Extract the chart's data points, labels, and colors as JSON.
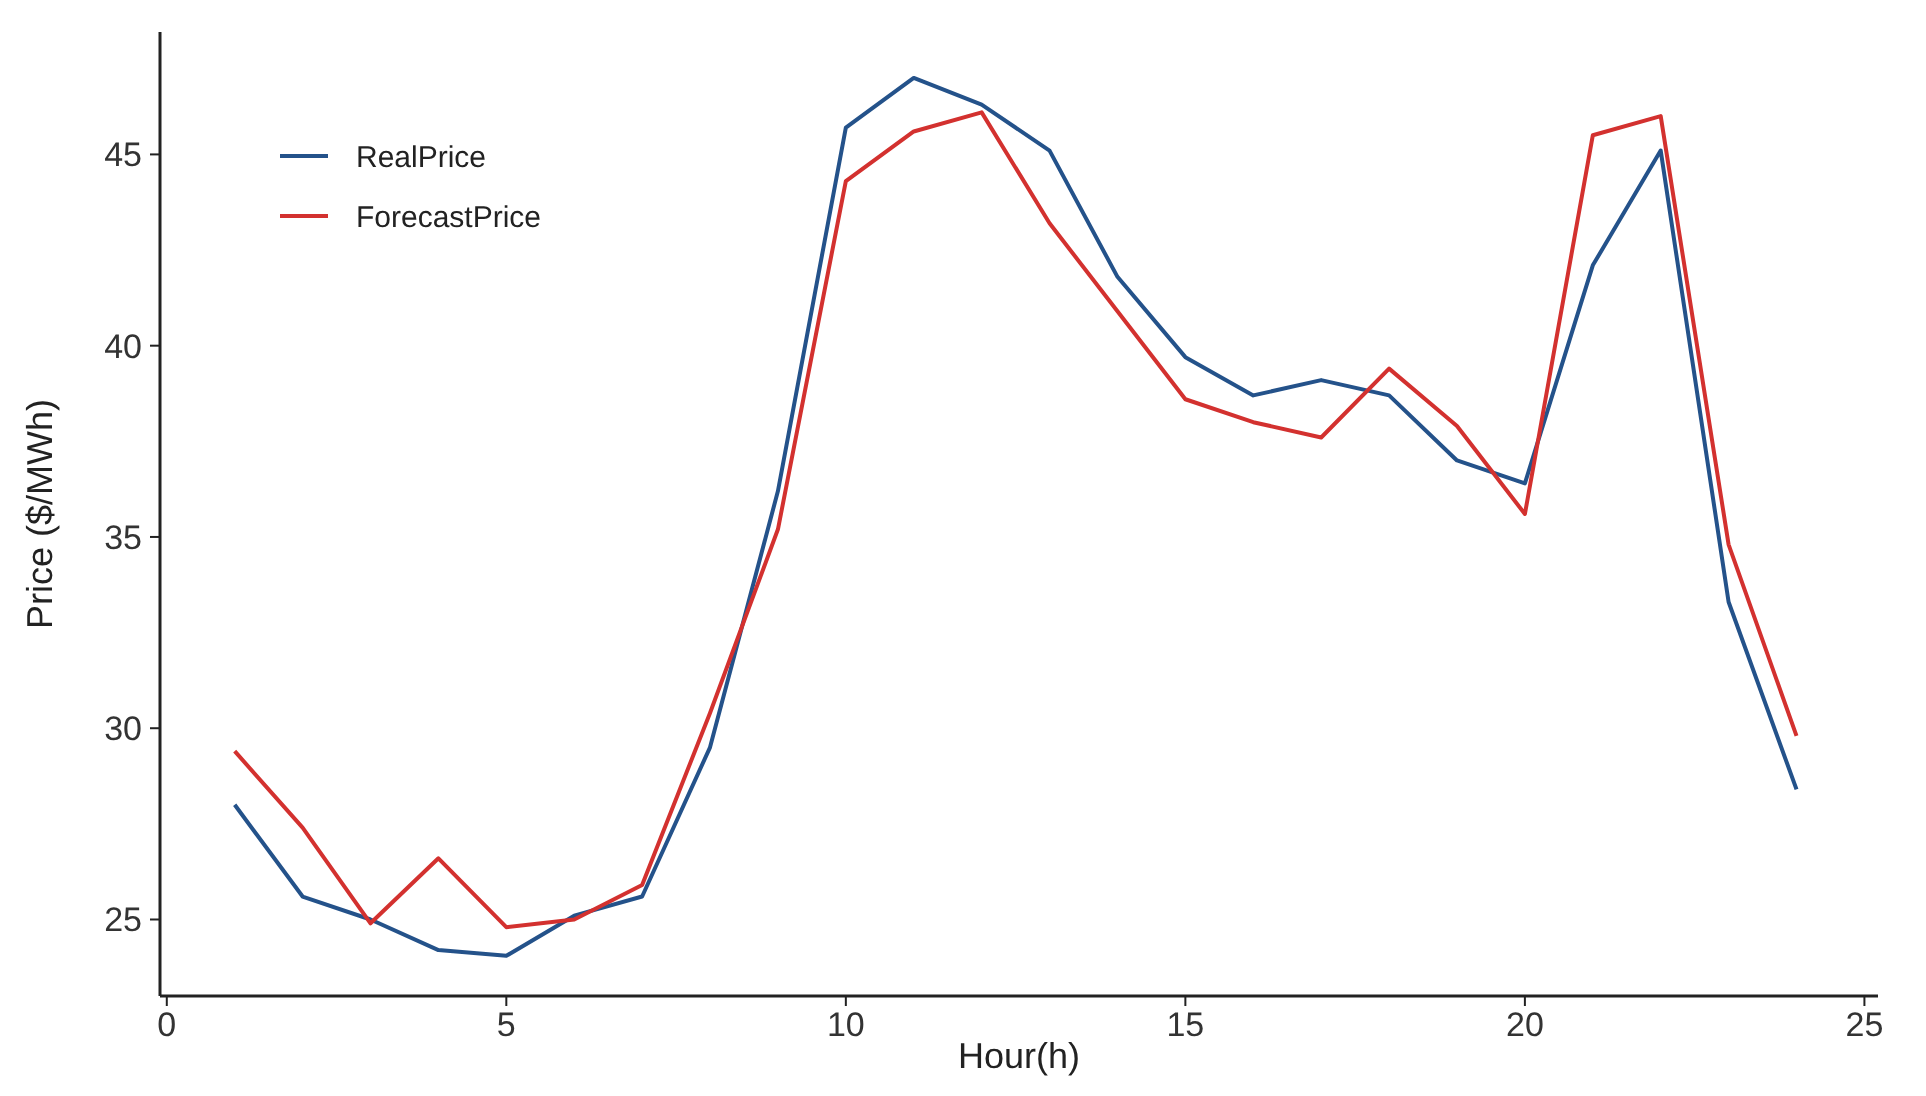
{
  "chart_data": {
    "type": "line",
    "xlabel": "Hour(h)",
    "ylabel": "Price ($/MWh)",
    "x": [
      1,
      2,
      3,
      4,
      5,
      6,
      7,
      8,
      9,
      10,
      11,
      12,
      13,
      14,
      15,
      16,
      17,
      18,
      19,
      20,
      21,
      22,
      23,
      24
    ],
    "series": [
      {
        "name": "RealPrice",
        "color": "#24528a",
        "values": [
          28.0,
          25.6,
          25.0,
          24.2,
          24.05,
          25.1,
          25.6,
          29.5,
          36.2,
          45.7,
          47.0,
          46.3,
          45.1,
          41.8,
          39.7,
          38.7,
          39.1,
          38.7,
          37.0,
          36.4,
          42.1,
          45.1,
          33.3,
          28.4
        ]
      },
      {
        "name": "ForecastPrice",
        "color": "#d3312f",
        "values": [
          29.4,
          27.4,
          24.9,
          26.6,
          24.8,
          25.0,
          25.9,
          30.4,
          35.2,
          44.3,
          45.6,
          46.1,
          43.2,
          40.9,
          38.6,
          38.0,
          37.6,
          39.4,
          37.9,
          35.6,
          45.5,
          46.0,
          34.8,
          29.8
        ]
      }
    ],
    "xlim": [
      -0.1,
      25.2
    ],
    "xticks": [
      0,
      5,
      10,
      15,
      20,
      25
    ],
    "ylim": [
      23.0,
      48.2
    ],
    "yticks": [
      25,
      30,
      35,
      40,
      45
    ],
    "grid": false,
    "legend": "top left",
    "marker": "none",
    "line_style": "solid"
  }
}
